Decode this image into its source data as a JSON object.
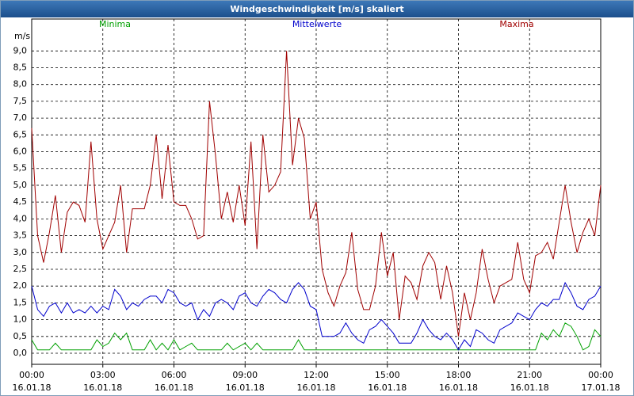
{
  "chart_data": {
    "type": "line",
    "title": "Windgeschwindigkeit [m/s] skaliert",
    "y_label": "m/s",
    "x": [
      0,
      0.25,
      0.5,
      0.75,
      1,
      1.25,
      1.5,
      1.75,
      2,
      2.25,
      2.5,
      2.75,
      3,
      3.25,
      3.5,
      3.75,
      4,
      4.25,
      4.5,
      4.75,
      5,
      5.25,
      5.5,
      5.75,
      6,
      6.25,
      6.5,
      6.75,
      7,
      7.25,
      7.5,
      7.75,
      8,
      8.25,
      8.5,
      8.75,
      9,
      9.25,
      9.5,
      9.75,
      10,
      10.25,
      10.5,
      10.75,
      11,
      11.25,
      11.5,
      11.75,
      12,
      12.25,
      12.5,
      12.75,
      13,
      13.25,
      13.5,
      13.75,
      14,
      14.25,
      14.5,
      14.75,
      15,
      15.25,
      15.5,
      15.75,
      16,
      16.25,
      16.5,
      16.75,
      17,
      17.25,
      17.5,
      17.75,
      18,
      18.25,
      18.5,
      18.75,
      19,
      19.25,
      19.5,
      19.75,
      20,
      20.25,
      20.5,
      20.75,
      21,
      21.25,
      21.5,
      21.75,
      22,
      22.25,
      22.5,
      22.75,
      23,
      23.25,
      23.5,
      23.75,
      24
    ],
    "series": [
      {
        "name": "Minima",
        "color": "#00a000",
        "values": [
          0.4,
          0.1,
          0.1,
          0.1,
          0.3,
          0.1,
          0.1,
          0.1,
          0.1,
          0.1,
          0.1,
          0.4,
          0.2,
          0.3,
          0.6,
          0.4,
          0.6,
          0.1,
          0.1,
          0.1,
          0.4,
          0.1,
          0.3,
          0.1,
          0.4,
          0.1,
          0.2,
          0.3,
          0.1,
          0.1,
          0.1,
          0.1,
          0.1,
          0.3,
          0.1,
          0.2,
          0.3,
          0.1,
          0.3,
          0.1,
          0.1,
          0.1,
          0.1,
          0.1,
          0.1,
          0.4,
          0.1,
          0.1,
          0.1,
          0.1,
          0.1,
          0.1,
          0.1,
          0.1,
          0.1,
          0.1,
          0.1,
          0.1,
          0.1,
          0.1,
          0.1,
          0.1,
          0.1,
          0.1,
          0.1,
          0.1,
          0.1,
          0.1,
          0.1,
          0.1,
          0.1,
          0.1,
          0.1,
          0.1,
          0.1,
          0.1,
          0.1,
          0.1,
          0.1,
          0.1,
          0.1,
          0.1,
          0.1,
          0.1,
          0.1,
          0.1,
          0.6,
          0.4,
          0.7,
          0.5,
          0.9,
          0.8,
          0.5,
          0.1,
          0.2,
          0.7,
          0.5
        ]
      },
      {
        "name": "Mittelwerte",
        "color": "#0000cc",
        "values": [
          2.0,
          1.3,
          1.1,
          1.4,
          1.5,
          1.2,
          1.5,
          1.2,
          1.3,
          1.2,
          1.4,
          1.2,
          1.4,
          1.3,
          1.9,
          1.7,
          1.3,
          1.5,
          1.4,
          1.6,
          1.7,
          1.7,
          1.5,
          1.9,
          1.8,
          1.5,
          1.4,
          1.5,
          1.0,
          1.3,
          1.1,
          1.5,
          1.6,
          1.5,
          1.3,
          1.7,
          1.8,
          1.5,
          1.4,
          1.7,
          1.9,
          1.8,
          1.6,
          1.5,
          1.9,
          2.1,
          1.9,
          1.4,
          1.3,
          0.5,
          0.5,
          0.5,
          0.6,
          0.9,
          0.6,
          0.4,
          0.3,
          0.7,
          0.8,
          1.0,
          0.8,
          0.6,
          0.3,
          0.3,
          0.3,
          0.6,
          1.0,
          0.7,
          0.5,
          0.4,
          0.6,
          0.4,
          0.1,
          0.4,
          0.2,
          0.7,
          0.6,
          0.4,
          0.3,
          0.7,
          0.8,
          0.9,
          1.2,
          1.1,
          1.0,
          1.3,
          1.5,
          1.4,
          1.6,
          1.6,
          2.1,
          1.8,
          1.4,
          1.3,
          1.6,
          1.7,
          2.0
        ]
      },
      {
        "name": "Maxima",
        "color": "#a00000",
        "values": [
          6.7,
          3.5,
          2.7,
          3.6,
          4.7,
          3.0,
          4.2,
          4.5,
          4.4,
          3.9,
          6.3,
          4.0,
          3.1,
          3.5,
          3.9,
          5.0,
          3.0,
          4.3,
          4.3,
          4.3,
          5.0,
          6.5,
          4.6,
          6.2,
          4.5,
          4.4,
          4.4,
          4.0,
          3.4,
          3.5,
          7.5,
          5.9,
          4.0,
          4.8,
          3.9,
          5.0,
          3.8,
          6.3,
          3.1,
          6.5,
          4.8,
          5.0,
          5.4,
          9.0,
          5.6,
          7.0,
          6.4,
          4.0,
          4.5,
          2.5,
          1.8,
          1.4,
          2.0,
          2.4,
          3.6,
          1.9,
          1.3,
          1.3,
          2.0,
          3.6,
          2.3,
          3.0,
          1.0,
          2.3,
          2.1,
          1.6,
          2.6,
          3.0,
          2.7,
          1.6,
          2.6,
          1.8,
          0.5,
          1.8,
          1.0,
          1.8,
          3.1,
          2.2,
          1.5,
          2.0,
          2.1,
          2.2,
          3.3,
          2.2,
          1.8,
          2.9,
          3.0,
          3.3,
          2.8,
          3.9,
          5.0,
          3.9,
          3.0,
          3.6,
          4.0,
          3.5,
          5.0
        ]
      }
    ],
    "xlim": [
      0,
      24
    ],
    "xticks": [
      {
        "value": 0,
        "label": "00:00",
        "date": "16.01.18"
      },
      {
        "value": 3,
        "label": "03:00",
        "date": "16.01.18"
      },
      {
        "value": 6,
        "label": "06:00",
        "date": "16.01.18"
      },
      {
        "value": 9,
        "label": "09:00",
        "date": "16.01.18"
      },
      {
        "value": 12,
        "label": "12:00",
        "date": "16.01.18"
      },
      {
        "value": 15,
        "label": "15:00",
        "date": "16.01.18"
      },
      {
        "value": 18,
        "label": "18:00",
        "date": "16.01.18"
      },
      {
        "value": 21,
        "label": "21:00",
        "date": "16.01.18"
      },
      {
        "value": 24,
        "label": "00:00",
        "date": "17.01.18"
      }
    ],
    "ylim": [
      -0.33,
      9.95
    ],
    "yticks": [
      {
        "value": 0,
        "label": "0,0"
      },
      {
        "value": 0.5,
        "label": "0,5"
      },
      {
        "value": 1,
        "label": "1,0"
      },
      {
        "value": 1.5,
        "label": "1,5"
      },
      {
        "value": 2,
        "label": "2,0"
      },
      {
        "value": 2.5,
        "label": "2,5"
      },
      {
        "value": 3,
        "label": "3,0"
      },
      {
        "value": 3.5,
        "label": "3,5"
      },
      {
        "value": 4,
        "label": "4,0"
      },
      {
        "value": 4.5,
        "label": "4,5"
      },
      {
        "value": 5,
        "label": "5,0"
      },
      {
        "value": 5.5,
        "label": "5,5"
      },
      {
        "value": 6,
        "label": "6,0"
      },
      {
        "value": 6.5,
        "label": "6,5"
      },
      {
        "value": 7,
        "label": "7,0"
      },
      {
        "value": 7.5,
        "label": "7,5"
      },
      {
        "value": 8,
        "label": "8,0"
      },
      {
        "value": 8.5,
        "label": "8,5"
      },
      {
        "value": 9,
        "label": "9,0"
      }
    ],
    "grid": true
  }
}
